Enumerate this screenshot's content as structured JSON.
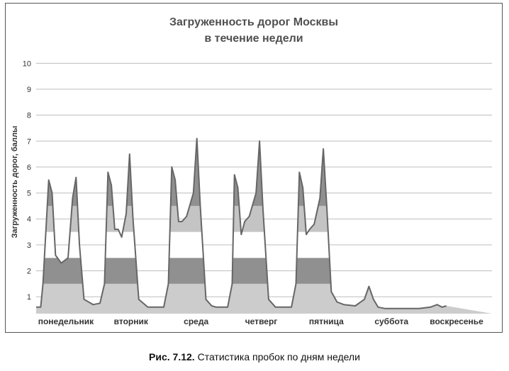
{
  "chart_data": {
    "type": "area",
    "title_lines": [
      "Загруженность дорог Москвы",
      "в течение недели"
    ],
    "ylabel": "Загруженность дорог, баллы",
    "xlabel": "",
    "ylim": [
      0.35,
      10.5
    ],
    "yticks": [
      1,
      2,
      3,
      4,
      5,
      6,
      7,
      8,
      9,
      10
    ],
    "grid": true,
    "legend": "none",
    "band_colors": [
      "#cccccc",
      "#909090",
      "#ffffff",
      "#c4c4c4",
      "#909090"
    ],
    "line_color": "#666666",
    "days": [
      {
        "name": "понедельник",
        "points": [
          [
            0,
            0.6
          ],
          [
            0.02,
            0.6
          ],
          [
            0.03,
            1.5
          ],
          [
            0.055,
            5.5
          ],
          [
            0.07,
            5.0
          ],
          [
            0.085,
            2.6
          ],
          [
            0.11,
            2.3
          ],
          [
            0.14,
            2.5
          ],
          [
            0.16,
            4.8
          ],
          [
            0.175,
            5.6
          ],
          [
            0.19,
            3.0
          ],
          [
            0.21,
            0.9
          ],
          [
            0.25,
            0.7
          ],
          [
            0.28,
            0.75
          ]
        ]
      },
      {
        "name": "вторник",
        "points": [
          [
            0,
            0.75
          ],
          [
            0.02,
            1.5
          ],
          [
            0.035,
            5.8
          ],
          [
            0.05,
            5.3
          ],
          [
            0.065,
            3.6
          ],
          [
            0.08,
            3.6
          ],
          [
            0.095,
            3.3
          ],
          [
            0.115,
            4.2
          ],
          [
            0.13,
            6.5
          ],
          [
            0.145,
            4.0
          ],
          [
            0.17,
            0.9
          ],
          [
            0.21,
            0.6
          ],
          [
            0.24,
            0.6
          ]
        ]
      },
      {
        "name": "среда",
        "points": [
          [
            0,
            0.6
          ],
          [
            0.02,
            1.5
          ],
          [
            0.035,
            6.0
          ],
          [
            0.05,
            5.5
          ],
          [
            0.065,
            3.9
          ],
          [
            0.08,
            3.9
          ],
          [
            0.1,
            4.1
          ],
          [
            0.13,
            5.0
          ],
          [
            0.145,
            7.1
          ],
          [
            0.16,
            4.5
          ],
          [
            0.185,
            0.9
          ],
          [
            0.21,
            0.65
          ],
          [
            0.23,
            0.6
          ]
        ]
      },
      {
        "name": "четверг",
        "points": [
          [
            0,
            0.6
          ],
          [
            0.02,
            1.5
          ],
          [
            0.03,
            5.7
          ],
          [
            0.045,
            5.2
          ],
          [
            0.06,
            3.4
          ],
          [
            0.075,
            3.9
          ],
          [
            0.095,
            4.1
          ],
          [
            0.125,
            5.0
          ],
          [
            0.14,
            7.0
          ],
          [
            0.155,
            4.4
          ],
          [
            0.18,
            0.9
          ],
          [
            0.21,
            0.6
          ],
          [
            0.23,
            0.6
          ]
        ]
      },
      {
        "name": "пятница",
        "points": [
          [
            0,
            0.6
          ],
          [
            0.02,
            1.5
          ],
          [
            0.035,
            5.8
          ],
          [
            0.05,
            5.2
          ],
          [
            0.065,
            3.4
          ],
          [
            0.08,
            3.6
          ],
          [
            0.1,
            3.8
          ],
          [
            0.125,
            4.8
          ],
          [
            0.14,
            6.7
          ],
          [
            0.155,
            4.5
          ],
          [
            0.175,
            1.2
          ],
          [
            0.2,
            0.8
          ],
          [
            0.23,
            0.7
          ]
        ]
      },
      {
        "name": "суббота",
        "points": [
          [
            0,
            0.65
          ],
          [
            0.04,
            0.9
          ],
          [
            0.06,
            1.4
          ],
          [
            0.08,
            0.9
          ],
          [
            0.1,
            0.6
          ],
          [
            0.13,
            0.55
          ]
        ]
      },
      {
        "name": "воскресенье",
        "points": [
          [
            0,
            0.55
          ],
          [
            0.05,
            0.6
          ],
          [
            0.08,
            0.7
          ],
          [
            0.1,
            0.6
          ],
          [
            0.12,
            0.65
          ]
        ]
      }
    ]
  },
  "caption": {
    "label": "Рис. 7.12.",
    "text": " Статистика пробок по дням недели"
  }
}
